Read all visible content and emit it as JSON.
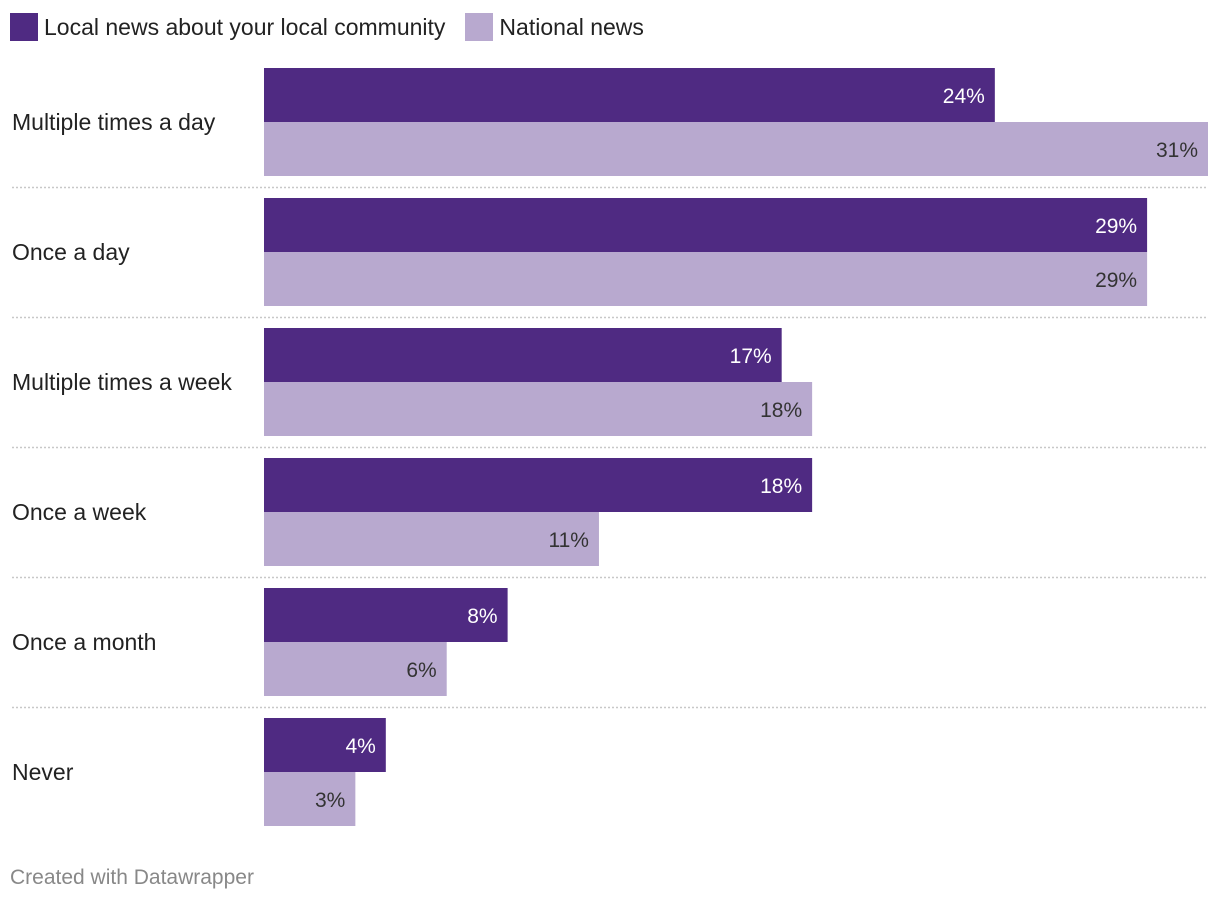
{
  "chart_data": {
    "type": "bar",
    "orientation": "horizontal",
    "title": "",
    "xlabel": "",
    "ylabel": "",
    "xlim": [
      0,
      31
    ],
    "categories": [
      "Multiple times a day",
      "Once a day",
      "Multiple times a week",
      "Once a week",
      "Once a month",
      "Never"
    ],
    "series": [
      {
        "name": "Local news about your local community",
        "color": "#4f2a82",
        "label_color": "#ffffff",
        "values": [
          24,
          29,
          17,
          18,
          8,
          4
        ],
        "labels": [
          "24%",
          "29%",
          "17%",
          "18%",
          "8%",
          "4%"
        ]
      },
      {
        "name": "National news",
        "color": "#b8a9cf",
        "label_color": "#333333",
        "values": [
          31,
          29,
          18,
          11,
          6,
          3
        ],
        "labels": [
          "31%",
          "29%",
          "18%",
          "11%",
          "6%",
          "3%"
        ]
      }
    ],
    "legend_position": "top-left",
    "grid": false,
    "separator_color": "#c8c8c8"
  },
  "footer": {
    "credit": "Created with Datawrapper"
  }
}
